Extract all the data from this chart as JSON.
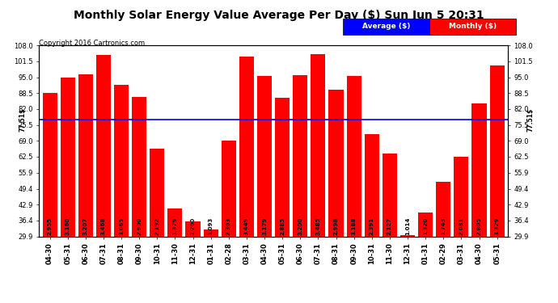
{
  "title": "Monthly Solar Energy Value Average Per Day ($) Sun Jun 5 20:31",
  "copyright": "Copyright 2016 Cartronics.com",
  "categories": [
    "04-30",
    "05-31",
    "06-30",
    "07-31",
    "08-31",
    "09-30",
    "10-31",
    "11-30",
    "12-31",
    "01-31",
    "02-28",
    "03-31",
    "04-30",
    "05-31",
    "06-30",
    "07-31",
    "08-31",
    "09-30",
    "10-31",
    "11-30",
    "12-31",
    "01-31",
    "02-29",
    "03-31",
    "04-30",
    "05-31"
  ],
  "values_display": [
    "2.955",
    "3.160",
    "3.207",
    "3.468",
    "3.065",
    "2.900",
    "2.192",
    "1.379",
    "1.200",
    "1.093",
    "2.303",
    "3.449",
    "3.179",
    "2.885",
    "3.200",
    "3.485",
    "2.998",
    "3.188",
    "2.391",
    "2.127",
    "1.014",
    "1.320",
    "1.743",
    "2.081",
    "2.805",
    "3.329"
  ],
  "bar_heights": [
    88.65,
    94.8,
    96.21,
    104.04,
    91.95,
    87.0,
    65.76,
    41.37,
    36.0,
    32.79,
    69.09,
    103.47,
    95.37,
    86.55,
    96.0,
    104.55,
    89.94,
    95.64,
    71.73,
    63.81,
    30.42,
    39.6,
    52.29,
    62.43,
    84.15,
    99.87
  ],
  "average_value": 77.51,
  "bar_color": "#ff0000",
  "avg_line_color": "#0000ff",
  "background_color": "#ffffff",
  "grid_color": "#ffffff",
  "ylim_min": 29.9,
  "ylim_max": 108.0,
  "yticks": [
    29.9,
    36.4,
    42.9,
    49.4,
    55.9,
    62.5,
    69.0,
    75.5,
    82.0,
    88.5,
    95.0,
    101.5,
    108.0
  ],
  "title_fontsize": 10,
  "tick_fontsize": 6,
  "bar_text_fontsize": 5,
  "legend_avg_label": "Average ($)",
  "legend_monthly_label": "Monthly ($)"
}
